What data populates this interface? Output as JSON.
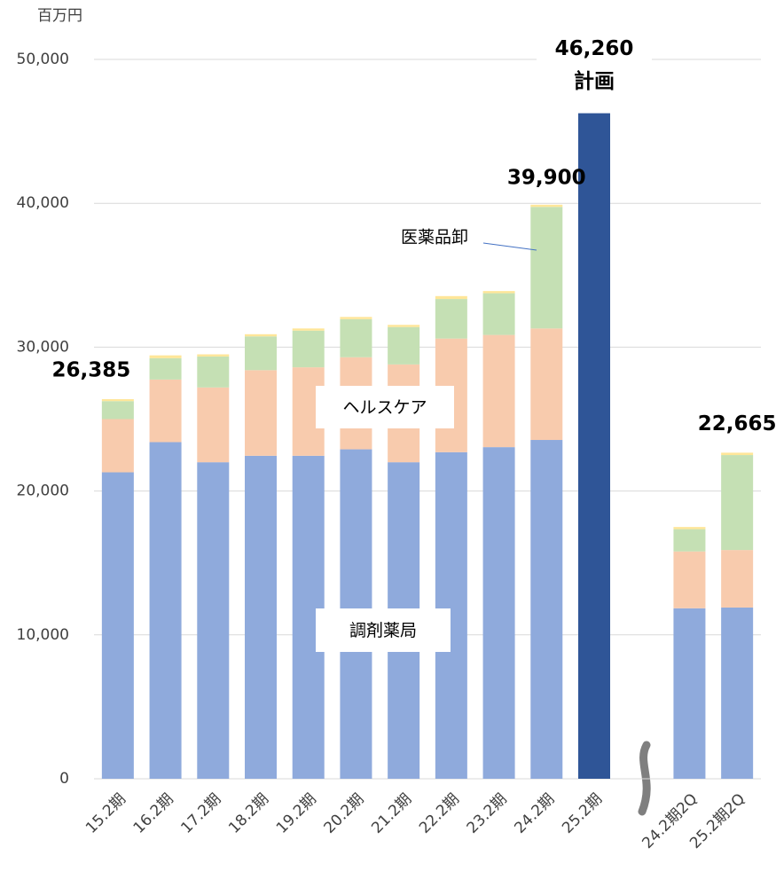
{
  "chart_data": {
    "type": "stacked_bar",
    "y_unit": "百万円",
    "categories": [
      "15.2期",
      "16.2期",
      "17.2期",
      "18.2期",
      "19.2期",
      "20.2期",
      "21.2期",
      "22.2期",
      "23.2期",
      "24.2期",
      "25.2期",
      null,
      "24.2期2Q",
      "25.2期2Q"
    ],
    "series": [
      {
        "name": "調剤薬局",
        "color": "#8faadc",
        "values": [
          21300,
          23400,
          22000,
          22450,
          22450,
          22900,
          22000,
          22700,
          23050,
          23550,
          null,
          null,
          11850,
          11900
        ]
      },
      {
        "name": "ヘルスケア",
        "color": "#f8cbad",
        "values": [
          3700,
          4350,
          5200,
          5950,
          6150,
          6400,
          6800,
          7900,
          7800,
          7750,
          null,
          null,
          3950,
          4000
        ]
      },
      {
        "name": "医薬品卸",
        "color": "#c5e0b4",
        "values": [
          1250,
          1480,
          2150,
          2350,
          2550,
          2650,
          2600,
          2750,
          2900,
          8450,
          null,
          null,
          1550,
          6600
        ]
      },
      {
        "color": "#ffe699",
        "values": [
          135,
          200,
          150,
          150,
          150,
          150,
          150,
          200,
          150,
          150,
          null,
          null,
          150,
          165
        ]
      },
      {
        "color": "#2f5597",
        "values": [
          null,
          null,
          null,
          null,
          null,
          null,
          null,
          null,
          null,
          null,
          46260,
          null,
          null,
          null
        ]
      }
    ],
    "totals": [
      26385,
      null,
      null,
      null,
      null,
      null,
      null,
      null,
      null,
      39900,
      46260,
      null,
      null,
      22665
    ],
    "total_value_labels": [
      "26,385",
      null,
      null,
      null,
      null,
      null,
      null,
      null,
      null,
      "39,900",
      "46,260",
      null,
      null,
      "22,665"
    ],
    "plan_label": "計画",
    "ylim": [
      0,
      50000
    ],
    "yticks": [
      0,
      {
        "value": 10000,
        "label": "10,000"
      },
      {
        "value": 20000,
        "label": "20,000"
      },
      {
        "value": 30000,
        "label": "30,000"
      },
      {
        "value": 40000,
        "label": "40,000"
      },
      {
        "value": 50000,
        "label": "50,000"
      }
    ],
    "grid": true
  }
}
